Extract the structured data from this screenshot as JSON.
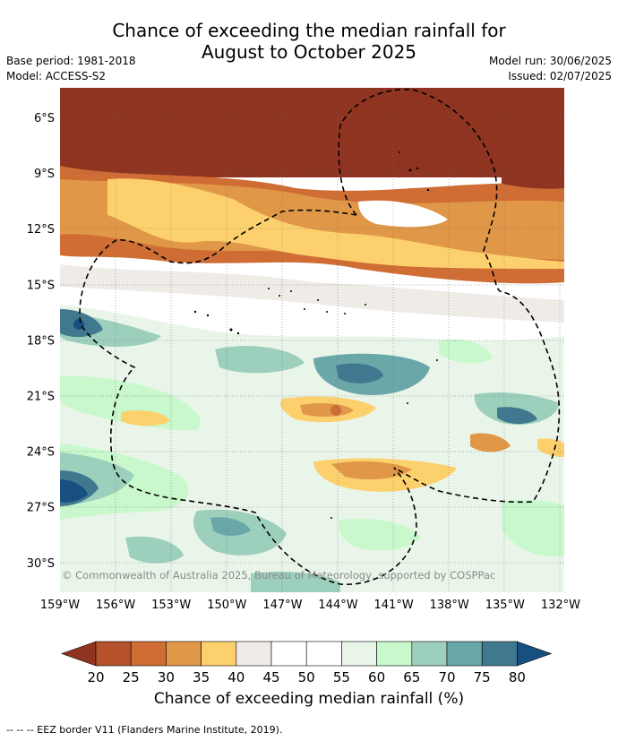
{
  "title_line1": "Chance of exceeding the median rainfall for",
  "title_line2": "August to October 2025",
  "meta_left": {
    "base_period": "Base period: 1981-2018",
    "model": "Model: ACCESS-S2"
  },
  "meta_right": {
    "model_run": "Model run: 30/06/2025",
    "issued": "Issued: 02/07/2025"
  },
  "map": {
    "lat_ticks": [
      "6°S",
      "9°S",
      "12°S",
      "15°S",
      "18°S",
      "21°S",
      "24°S",
      "27°S",
      "30°S"
    ],
    "lon_ticks": [
      "159°W",
      "156°W",
      "153°W",
      "150°W",
      "147°W",
      "144°W",
      "141°W",
      "138°W",
      "135°W",
      "132°W"
    ],
    "copyright": "© Commonwealth of Australia 2025, Bureau of Meteorology, supported by COSPPac"
  },
  "colorbar": {
    "ticks": [
      "20",
      "25",
      "30",
      "35",
      "40",
      "45",
      "50",
      "55",
      "60",
      "65",
      "70",
      "75",
      "80"
    ],
    "colors": [
      "#8f3420",
      "#b5512b",
      "#cf6d34",
      "#e09848",
      "#fdd06e",
      "#efebe7",
      "#ffffff",
      "#ffffff",
      "#eaf5e9",
      "#c8f8cc",
      "#9ccfbc",
      "#6aa7a8",
      "#40788f",
      "#174f80"
    ],
    "label": "Chance of exceeding median rainfall (%)"
  },
  "footer": "--  --  -- EEZ border V11 (Flanders Marine Institute, 2019)."
}
